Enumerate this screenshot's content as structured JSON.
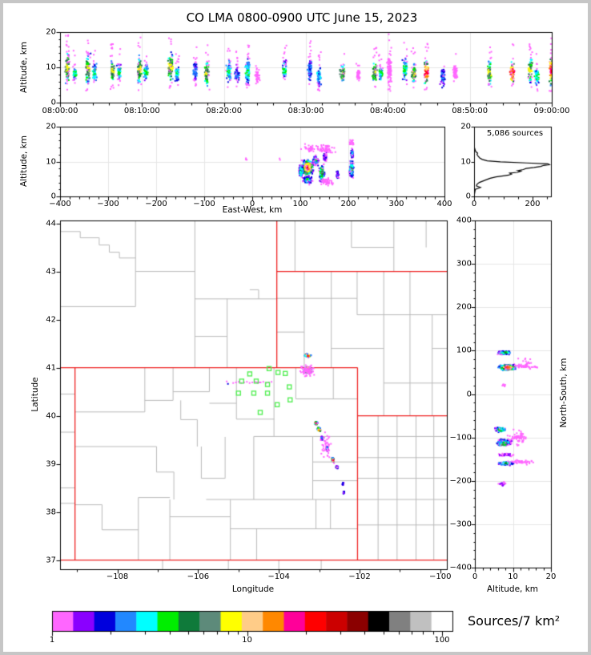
{
  "title": "CO LMA 0800-0900 UTC June 15, 2023",
  "annotation_sources": "5,086 sources",
  "axes": {
    "time_height": {
      "ylabel": "Altitude, km",
      "yticks": [
        "0",
        "10",
        "20"
      ],
      "xticks": [
        "08:00:00",
        "08:10:00",
        "08:20:00",
        "08:30:00",
        "08:40:00",
        "08:50:00",
        "09:00:00"
      ]
    },
    "east_west": {
      "xlabel": "East-West, km",
      "ylabel": "Altitude, km",
      "xticks": [
        "−400",
        "−300",
        "−200",
        "−100",
        "0",
        "100",
        "200",
        "300",
        "400"
      ],
      "yticks": [
        "0",
        "10",
        "20"
      ]
    },
    "histogram": {
      "xticks": [
        "0",
        "200"
      ],
      "yticks": [
        "0",
        "10",
        "20"
      ]
    },
    "map": {
      "xlabel": "Longitude",
      "ylabel": "Latitude",
      "xticks": [
        "−108",
        "−106",
        "−104",
        "−102",
        "−100"
      ],
      "yticks": [
        "37",
        "38",
        "39",
        "40",
        "41",
        "42",
        "43",
        "44"
      ]
    },
    "north_south": {
      "xlabel": "Altitude, km",
      "ylabel": "North-South, km",
      "xticks": [
        "0",
        "10",
        "20"
      ],
      "yticks": [
        "400",
        "300",
        "200",
        "100",
        "0",
        "−100",
        "−200",
        "−300",
        "−400"
      ]
    }
  },
  "colorbar": {
    "label": "Sources/7 km²",
    "tick_labels": [
      "1",
      "10",
      "100"
    ],
    "palette": [
      "#ff66ff",
      "#8a00ff",
      "#0000dd",
      "#2288ff",
      "#00ffff",
      "#00ee00",
      "#0f7a3a",
      "#5d8a7a",
      "#ffff00",
      "#ffcc88",
      "#ff8800",
      "#ff0099",
      "#ff0000",
      "#cc0000",
      "#8b0000",
      "#000000",
      "#808080",
      "#c0c0c0",
      "#ffffff"
    ]
  },
  "colors": {
    "state_border": "#ee2222",
    "county_line": "#b9b9b9",
    "station": "#55ee55",
    "gridline": "#e6e6e6",
    "frame": "#000000",
    "histogram_line": "#000000",
    "page_border": "#c6c6c6"
  },
  "chart_data": {
    "type": "scatter",
    "time_height_columns": [
      [
        0.8,
        3.5,
        16.5,
        8
      ],
      [
        1.7,
        5,
        12,
        5
      ],
      [
        3.3,
        3.5,
        16,
        8
      ],
      [
        4.1,
        4.5,
        13,
        5
      ],
      [
        6.3,
        4,
        14,
        8
      ],
      [
        7.1,
        5,
        12.5,
        5
      ],
      [
        9.6,
        3.5,
        16,
        8
      ],
      [
        10.4,
        5,
        13,
        5
      ],
      [
        13.4,
        4,
        16.5,
        8
      ],
      [
        14.2,
        4.5,
        12,
        5
      ],
      [
        16.4,
        4.5,
        13.5,
        3
      ],
      [
        17.8,
        3,
        14,
        8
      ],
      [
        20.5,
        4,
        14,
        5
      ],
      [
        21.5,
        4.5,
        12,
        3
      ],
      [
        22.8,
        3,
        14.5,
        5
      ],
      [
        24.0,
        5,
        10,
        0
      ],
      [
        27.3,
        5.5,
        13.5,
        5
      ],
      [
        30.4,
        4.5,
        15,
        3
      ],
      [
        31.5,
        3.5,
        12,
        4
      ],
      [
        34.4,
        4.5,
        12.5,
        8
      ],
      [
        36.3,
        5.5,
        11,
        0
      ],
      [
        38.3,
        4.5,
        13,
        8
      ],
      [
        39.0,
        5,
        12,
        5
      ],
      [
        40.1,
        3.5,
        17,
        0
      ],
      [
        42.0,
        4.5,
        14.5,
        5
      ],
      [
        43.1,
        4,
        13,
        8
      ],
      [
        44.6,
        3.5,
        14,
        12
      ],
      [
        46.6,
        3,
        11.5,
        3
      ],
      [
        48.1,
        5.5,
        12,
        0
      ],
      [
        52.3,
        3.5,
        14,
        8
      ],
      [
        55.1,
        3.5,
        14,
        12
      ],
      [
        57.3,
        4,
        15,
        8
      ],
      [
        58.1,
        3.5,
        12,
        5
      ],
      [
        59.9,
        3,
        16,
        12
      ]
    ],
    "east_west_clusters": [
      [
        113,
        8.5,
        14,
        2.6,
        430,
        13,
        0
      ],
      [
        100,
        7.5,
        6,
        2.2,
        120,
        6,
        0
      ],
      [
        113,
        5.0,
        12,
        1.5,
        110,
        5,
        0
      ],
      [
        130,
        10.5,
        8,
        1.8,
        80,
        5,
        0
      ],
      [
        143,
        7.0,
        7,
        2.8,
        170,
        8,
        0
      ],
      [
        150,
        11.5,
        5,
        1.6,
        50,
        2,
        0
      ],
      [
        176,
        6.5,
        3,
        1.5,
        40,
        3,
        0
      ],
      [
        205,
        8.0,
        5,
        3.2,
        140,
        6,
        0
      ],
      [
        206,
        12.5,
        4,
        1.7,
        45,
        4,
        0
      ],
      [
        152,
        4.5,
        18,
        1.3,
        50,
        0,
        0
      ],
      [
        150,
        13.8,
        30,
        1.8,
        55,
        0,
        0
      ],
      [
        205,
        15.5,
        8,
        1.5,
        18,
        0,
        0
      ],
      [
        118,
        14.0,
        20,
        1.5,
        30,
        0,
        0
      ],
      [
        -15,
        11,
        4,
        0.8,
        4,
        0,
        0
      ],
      [
        55,
        11,
        1.5,
        0.5,
        2,
        0,
        0
      ]
    ],
    "altitude_histogram": [
      [
        0,
        0
      ],
      [
        2,
        1
      ],
      [
        4,
        2
      ],
      [
        22,
        2.6
      ],
      [
        8,
        3
      ],
      [
        10,
        3.5
      ],
      [
        18,
        4
      ],
      [
        30,
        4.4
      ],
      [
        42,
        4.8
      ],
      [
        55,
        5.2
      ],
      [
        75,
        5.6
      ],
      [
        100,
        5.9
      ],
      [
        118,
        6.1
      ],
      [
        128,
        6.4
      ],
      [
        122,
        6.7
      ],
      [
        148,
        6.9
      ],
      [
        160,
        7.2
      ],
      [
        150,
        7.4
      ],
      [
        168,
        7.7
      ],
      [
        178,
        8.0
      ],
      [
        205,
        8.3
      ],
      [
        228,
        8.6
      ],
      [
        238,
        8.9
      ],
      [
        258,
        9.1
      ],
      [
        252,
        9.35
      ],
      [
        180,
        9.6
      ],
      [
        90,
        9.9
      ],
      [
        45,
        10.2
      ],
      [
        28,
        10.6
      ],
      [
        20,
        11.0
      ],
      [
        14,
        11.5
      ],
      [
        10,
        12.0
      ],
      [
        12,
        12.4
      ],
      [
        6,
        12.8
      ],
      [
        4,
        13.2
      ],
      [
        2,
        13.8
      ],
      [
        0,
        14.5
      ]
    ],
    "map_clusters": [
      [
        -103.3,
        41.27,
        0.1,
        0.035,
        70,
        15,
        -0.4
      ],
      [
        -103.3,
        40.97,
        0.11,
        0.075,
        280,
        18,
        0
      ],
      [
        -103.3,
        40.96,
        0.24,
        0.15,
        70,
        0,
        0
      ],
      [
        -103.1,
        39.86,
        0.05,
        0.045,
        60,
        12,
        0
      ],
      [
        -103.02,
        39.73,
        0.055,
        0.06,
        80,
        14,
        -0.5
      ],
      [
        -102.95,
        39.55,
        0.035,
        0.05,
        25,
        3,
        0
      ],
      [
        -102.82,
        39.33,
        0.04,
        0.06,
        35,
        5,
        -0.4
      ],
      [
        -102.68,
        39.1,
        0.05,
        0.06,
        70,
        14,
        -0.4
      ],
      [
        -102.58,
        38.95,
        0.035,
        0.04,
        30,
        5,
        0
      ],
      [
        -102.43,
        38.6,
        0.025,
        0.05,
        16,
        2,
        0
      ],
      [
        -102.41,
        38.42,
        0.03,
        0.04,
        18,
        3,
        0
      ],
      [
        -102.85,
        39.38,
        0.18,
        0.42,
        40,
        0,
        -0.35
      ]
    ],
    "north_south_clusters": [
      [
        7.5,
        97,
        2.3,
        5,
        170,
        6,
        0
      ],
      [
        8.3,
        63,
        2.6,
        8,
        400,
        13,
        0
      ],
      [
        12,
        66,
        3,
        5,
        30,
        0,
        0
      ],
      [
        15.5,
        64,
        1.5,
        3,
        8,
        0,
        0
      ],
      [
        7.5,
        22,
        0.8,
        5,
        8,
        0,
        0
      ],
      [
        6.5,
        -80,
        1.8,
        7,
        140,
        7,
        0
      ],
      [
        7.5,
        -110,
        2.3,
        9,
        210,
        6,
        0
      ],
      [
        7.0,
        -115,
        1.5,
        3,
        35,
        8,
        0
      ],
      [
        8.0,
        -138,
        2.5,
        5,
        40,
        1,
        0
      ],
      [
        8.0,
        -158,
        2.6,
        5,
        150,
        6,
        0
      ],
      [
        12,
        -155,
        4,
        8,
        45,
        0,
        0
      ],
      [
        7.0,
        -205,
        1.2,
        6,
        28,
        1,
        0
      ],
      [
        11,
        -100,
        4,
        25,
        60,
        0,
        0
      ],
      [
        13,
        70,
        3,
        18,
        25,
        0,
        0
      ]
    ],
    "stations": [
      [
        -104.24,
        40.98
      ],
      [
        -104.72,
        40.87
      ],
      [
        -104.02,
        40.9
      ],
      [
        -103.84,
        40.88
      ],
      [
        -104.92,
        40.72
      ],
      [
        -104.56,
        40.72
      ],
      [
        -104.28,
        40.65
      ],
      [
        -103.74,
        40.6
      ],
      [
        -105.0,
        40.47
      ],
      [
        -104.62,
        40.47
      ],
      [
        -104.28,
        40.47
      ],
      [
        -103.72,
        40.33
      ],
      [
        -104.04,
        40.23
      ],
      [
        -104.46,
        40.07
      ]
    ],
    "dotted_track": {
      "lat": 40.71,
      "lon_from": -105.15,
      "lon_to": -104.2,
      "n": 15,
      "extra_dots": [
        [
          -105.28,
          40.68
        ],
        [
          -105.31,
          40.73
        ],
        [
          -104.57,
          40.71
        ]
      ]
    },
    "state_lines": [
      [
        -109.05,
        37,
        -109.05,
        41
      ],
      [
        -109.42,
        41,
        -102.05,
        41
      ],
      [
        -102.05,
        41,
        -102.05,
        37
      ],
      [
        -109.42,
        37,
        -99.78,
        37
      ],
      [
        -104.05,
        44.06,
        -104.05,
        41
      ],
      [
        -104.05,
        43,
        -99.78,
        43
      ],
      [
        -102.05,
        40,
        -99.78,
        40
      ]
    ],
    "county_lines": [
      [
        -109.42,
        43.83,
        -108.92,
        43.83
      ],
      [
        -108.92,
        43.83,
        -108.92,
        43.7
      ],
      [
        -108.92,
        43.7,
        -108.45,
        43.7
      ],
      [
        -108.45,
        43.7,
        -108.45,
        43.55
      ],
      [
        -108.45,
        43.55,
        -108.2,
        43.55
      ],
      [
        -108.2,
        43.55,
        -108.2,
        43.4
      ],
      [
        -108.2,
        43.4,
        -107.95,
        43.4
      ],
      [
        -107.95,
        43.4,
        -107.95,
        43.28
      ],
      [
        -107.95,
        43.28,
        -107.55,
        43.28
      ],
      [
        -107.55,
        44.06,
        -107.55,
        42.27
      ],
      [
        -109.42,
        42.27,
        -107.55,
        42.27
      ],
      [
        -107.55,
        43.0,
        -106.08,
        43.0
      ],
      [
        -106.08,
        44.06,
        -106.08,
        41.0
      ],
      [
        -106.08,
        42.43,
        -104.05,
        42.43
      ],
      [
        -105.28,
        42.43,
        -105.28,
        41.0
      ],
      [
        -106.08,
        41.65,
        -105.28,
        41.65
      ],
      [
        -104.72,
        42.62,
        -104.5,
        42.62
      ],
      [
        -104.5,
        42.62,
        -104.5,
        42.43
      ],
      [
        -103.6,
        44.06,
        -103.6,
        43.0
      ],
      [
        -102.2,
        44.06,
        -102.2,
        43.5
      ],
      [
        -102.2,
        43.5,
        -101.15,
        43.5
      ],
      [
        -101.15,
        44.06,
        -101.15,
        43.0
      ],
      [
        -100.35,
        44.06,
        -100.35,
        43.5
      ],
      [
        -103.37,
        43.0,
        -103.37,
        41.0
      ],
      [
        -102.7,
        43.0,
        -102.7,
        41.0
      ],
      [
        -102.06,
        43.0,
        -102.06,
        42.1
      ],
      [
        -101.4,
        43.0,
        -101.4,
        40.0
      ],
      [
        -100.75,
        43.0,
        -100.75,
        40.0
      ],
      [
        -100.2,
        42.1,
        -100.2,
        40.0
      ],
      [
        -104.05,
        42.44,
        -102.06,
        42.44
      ],
      [
        -102.06,
        42.1,
        -99.78,
        42.1
      ],
      [
        -104.05,
        41.74,
        -103.37,
        41.74
      ],
      [
        -102.7,
        41.4,
        -101.4,
        41.4
      ],
      [
        -101.4,
        40.68,
        -99.78,
        40.68
      ],
      [
        -100.2,
        41.4,
        -99.78,
        41.4
      ],
      [
        -101.54,
        40.0,
        -101.54,
        37.0
      ],
      [
        -101.07,
        40.0,
        -101.07,
        37.0
      ],
      [
        -100.6,
        40.0,
        -100.6,
        37.0
      ],
      [
        -100.16,
        40.0,
        -100.16,
        37.0
      ],
      [
        -102.05,
        39.57,
        -99.78,
        39.57
      ],
      [
        -102.05,
        39.13,
        -99.78,
        39.13
      ],
      [
        -102.05,
        38.7,
        -99.78,
        38.7
      ],
      [
        -102.05,
        38.26,
        -99.78,
        38.26
      ],
      [
        -102.05,
        37.73,
        -99.78,
        37.73
      ],
      [
        -102.95,
        37.0,
        -102.95,
        36.81
      ],
      [
        -104.0,
        37.0,
        -104.0,
        36.81
      ],
      [
        -105.25,
        37.0,
        -105.25,
        36.81
      ],
      [
        -106.88,
        37.0,
        -106.88,
        36.81
      ],
      [
        -109.42,
        40.45,
        -109.05,
        40.45
      ],
      [
        -109.42,
        39.66,
        -109.05,
        39.66
      ],
      [
        -109.42,
        38.5,
        -109.05,
        38.5
      ],
      [
        -109.42,
        38.18,
        -109.05,
        38.18
      ],
      [
        -107.32,
        41.0,
        -107.32,
        40.08
      ],
      [
        -109.05,
        40.08,
        -107.32,
        40.08
      ],
      [
        -106.62,
        41.0,
        -106.62,
        40.32
      ],
      [
        -107.32,
        40.32,
        -106.62,
        40.32
      ],
      [
        -105.72,
        41.0,
        -105.72,
        40.5
      ],
      [
        -106.62,
        40.5,
        -105.72,
        40.5
      ],
      [
        -105.05,
        41.0,
        -105.05,
        39.93
      ],
      [
        -105.72,
        40.26,
        -105.05,
        40.26
      ],
      [
        -104.12,
        41.0,
        -104.12,
        39.57
      ],
      [
        -105.05,
        39.93,
        -104.12,
        39.93
      ],
      [
        -103.58,
        41.0,
        -103.58,
        40.35
      ],
      [
        -102.65,
        41.0,
        -102.65,
        40.35
      ],
      [
        -103.58,
        40.35,
        -102.05,
        40.35
      ],
      [
        -104.62,
        39.57,
        -102.05,
        39.57
      ],
      [
        -104.62,
        39.57,
        -104.62,
        38.26
      ],
      [
        -103.16,
        39.57,
        -103.16,
        38.26
      ],
      [
        -103.16,
        39.04,
        -102.05,
        39.04
      ],
      [
        -103.16,
        38.65,
        -102.05,
        38.65
      ],
      [
        -109.05,
        39.36,
        -107.03,
        39.36
      ],
      [
        -107.03,
        39.36,
        -107.03,
        38.83
      ],
      [
        -107.03,
        38.83,
        -106.6,
        38.83
      ],
      [
        -106.6,
        38.83,
        -106.6,
        38.26
      ],
      [
        -106.43,
        40.32,
        -106.43,
        39.92
      ],
      [
        -106.43,
        39.92,
        -106.02,
        39.92
      ],
      [
        -106.02,
        39.92,
        -106.02,
        39.36
      ],
      [
        -105.92,
        39.36,
        -105.92,
        38.7
      ],
      [
        -105.92,
        38.7,
        -105.33,
        38.7
      ],
      [
        -105.33,
        39.56,
        -105.33,
        38.7
      ],
      [
        -109.05,
        38.15,
        -108.38,
        38.15
      ],
      [
        -108.38,
        38.15,
        -108.38,
        37.63
      ],
      [
        -108.38,
        37.63,
        -107.48,
        37.63
      ],
      [
        -107.48,
        38.3,
        -107.48,
        37.0
      ],
      [
        -107.48,
        38.3,
        -106.7,
        38.3
      ],
      [
        -106.7,
        38.26,
        -106.7,
        37.0
      ],
      [
        -106.7,
        37.9,
        -105.2,
        37.9
      ],
      [
        -105.2,
        38.26,
        -105.2,
        37.0
      ],
      [
        -105.8,
        38.26,
        -102.05,
        38.26
      ],
      [
        -105.2,
        37.65,
        -102.05,
        37.65
      ],
      [
        -104.55,
        37.65,
        -104.55,
        37.0
      ],
      [
        -103.08,
        38.26,
        -103.08,
        37.65
      ],
      [
        -102.72,
        38.26,
        -102.72,
        37.65
      ]
    ]
  }
}
